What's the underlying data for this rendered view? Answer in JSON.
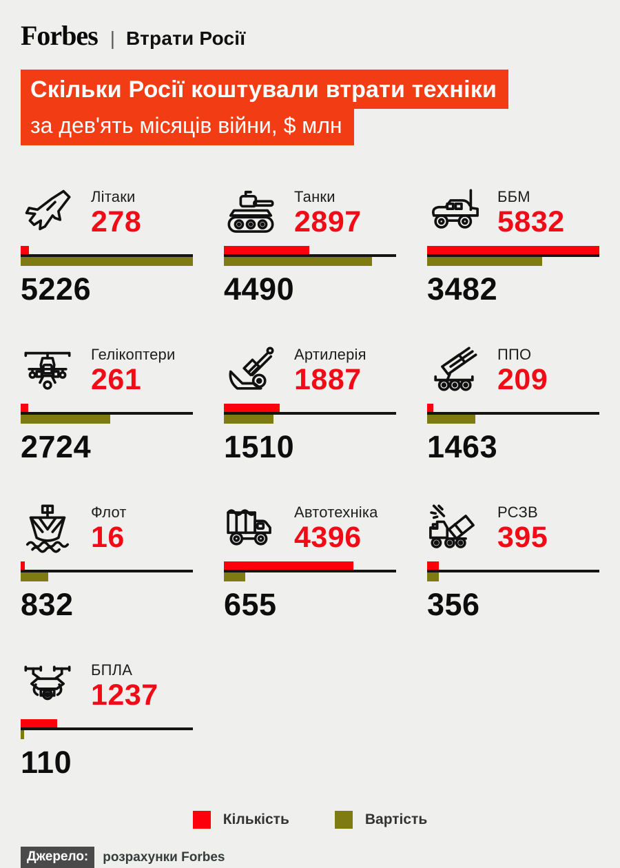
{
  "brand": {
    "logo": "Forbes",
    "divider": "|",
    "title": "Втрати Росії"
  },
  "heading": {
    "line1": "Скільки Росії коштували втрати техніки",
    "line2": "за дев'ять місяців війни, $ млн"
  },
  "legend": {
    "quantity_label": "Кількість",
    "cost_label": "Вартість"
  },
  "footer": {
    "source_label": "Джерело:",
    "source_text": "розрахунки Forbes"
  },
  "colors": {
    "background": "#efefee",
    "accent_title": "#f23d14",
    "bar_red": "#fc000c",
    "text_red": "#f20a17",
    "bar_olive": "#7d7b12",
    "axis_black": "#141414"
  },
  "chart_data": {
    "type": "bar",
    "title": "Скільки Росії коштували втрати техніки",
    "subtitle": "за дев'ять місяців війни, $ млн",
    "legend_position": "bottom",
    "grid": false,
    "categories": [
      "Літаки",
      "Танки",
      "ББМ",
      "Гелікоптери",
      "Артилерія",
      "ППО",
      "Флот",
      "Автотехніка",
      "РСЗВ",
      "БПЛА"
    ],
    "series": [
      {
        "name": "Кількість",
        "color": "#fc000c",
        "axis_max": 5832,
        "values": [
          278,
          2897,
          5832,
          261,
          1887,
          209,
          16,
          4396,
          395,
          1237
        ]
      },
      {
        "name": "Вартість",
        "color": "#7d7b12",
        "axis_max": 5226,
        "values": [
          5226,
          4490,
          3482,
          2724,
          1510,
          1463,
          832,
          655,
          356,
          110
        ]
      }
    ],
    "items": [
      {
        "label": "Літаки",
        "icon": "jet-icon",
        "quantity": "278",
        "cost": "5226"
      },
      {
        "label": "Танки",
        "icon": "tank-icon",
        "quantity": "2897",
        "cost": "4490"
      },
      {
        "label": "ББМ",
        "icon": "armored-vehicle-icon",
        "quantity": "5832",
        "cost": "3482"
      },
      {
        "label": "Гелікоптери",
        "icon": "helicopter-icon",
        "quantity": "261",
        "cost": "2724"
      },
      {
        "label": "Артилерія",
        "icon": "artillery-icon",
        "quantity": "1887",
        "cost": "1510"
      },
      {
        "label": "ППО",
        "icon": "air-defense-icon",
        "quantity": "209",
        "cost": "1463"
      },
      {
        "label": "Флот",
        "icon": "ship-icon",
        "quantity": "16",
        "cost": "832"
      },
      {
        "label": "Автотехніка",
        "icon": "truck-icon",
        "quantity": "4396",
        "cost": "655"
      },
      {
        "label": "РСЗВ",
        "icon": "mlrs-icon",
        "quantity": "395",
        "cost": "356"
      },
      {
        "label": "БПЛА",
        "icon": "drone-icon",
        "quantity": "1237",
        "cost": "110"
      }
    ]
  }
}
